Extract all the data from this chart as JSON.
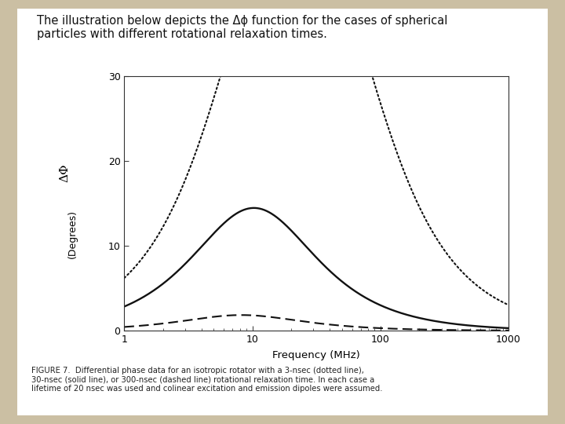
{
  "title_text": "The illustration below depicts the Δϕ function for the cases of spherical\nparticles with different rotational relaxation times.",
  "xlabel": "Frequency (MHz)",
  "ylabel_line1": "ΔΦ",
  "ylabel_line2": "(Degrees)",
  "ylim": [
    0,
    30
  ],
  "yticks": [
    0,
    10,
    20,
    30
  ],
  "xtick_labels": [
    "1",
    "10",
    "100",
    "1000"
  ],
  "caption": "FIGURE 7.  Differential phase data for an isotropic rotator with a 3-nsec (dotted line),\n30-nsec (solid line), or 300-nsec (dashed line) rotational relaxation time. In each case a\nlifetime of 20 nsec was used and colinear excitation and emission dipoles were assumed.",
  "bg_color": "#cbbfa3",
  "white_box_color": "#ffffff",
  "curve_color": "#111111",
  "tau_dotted_ns": 3,
  "tau_solid_ns": 30,
  "tau_dashed_ns": 300,
  "lifetime_ns": 20
}
